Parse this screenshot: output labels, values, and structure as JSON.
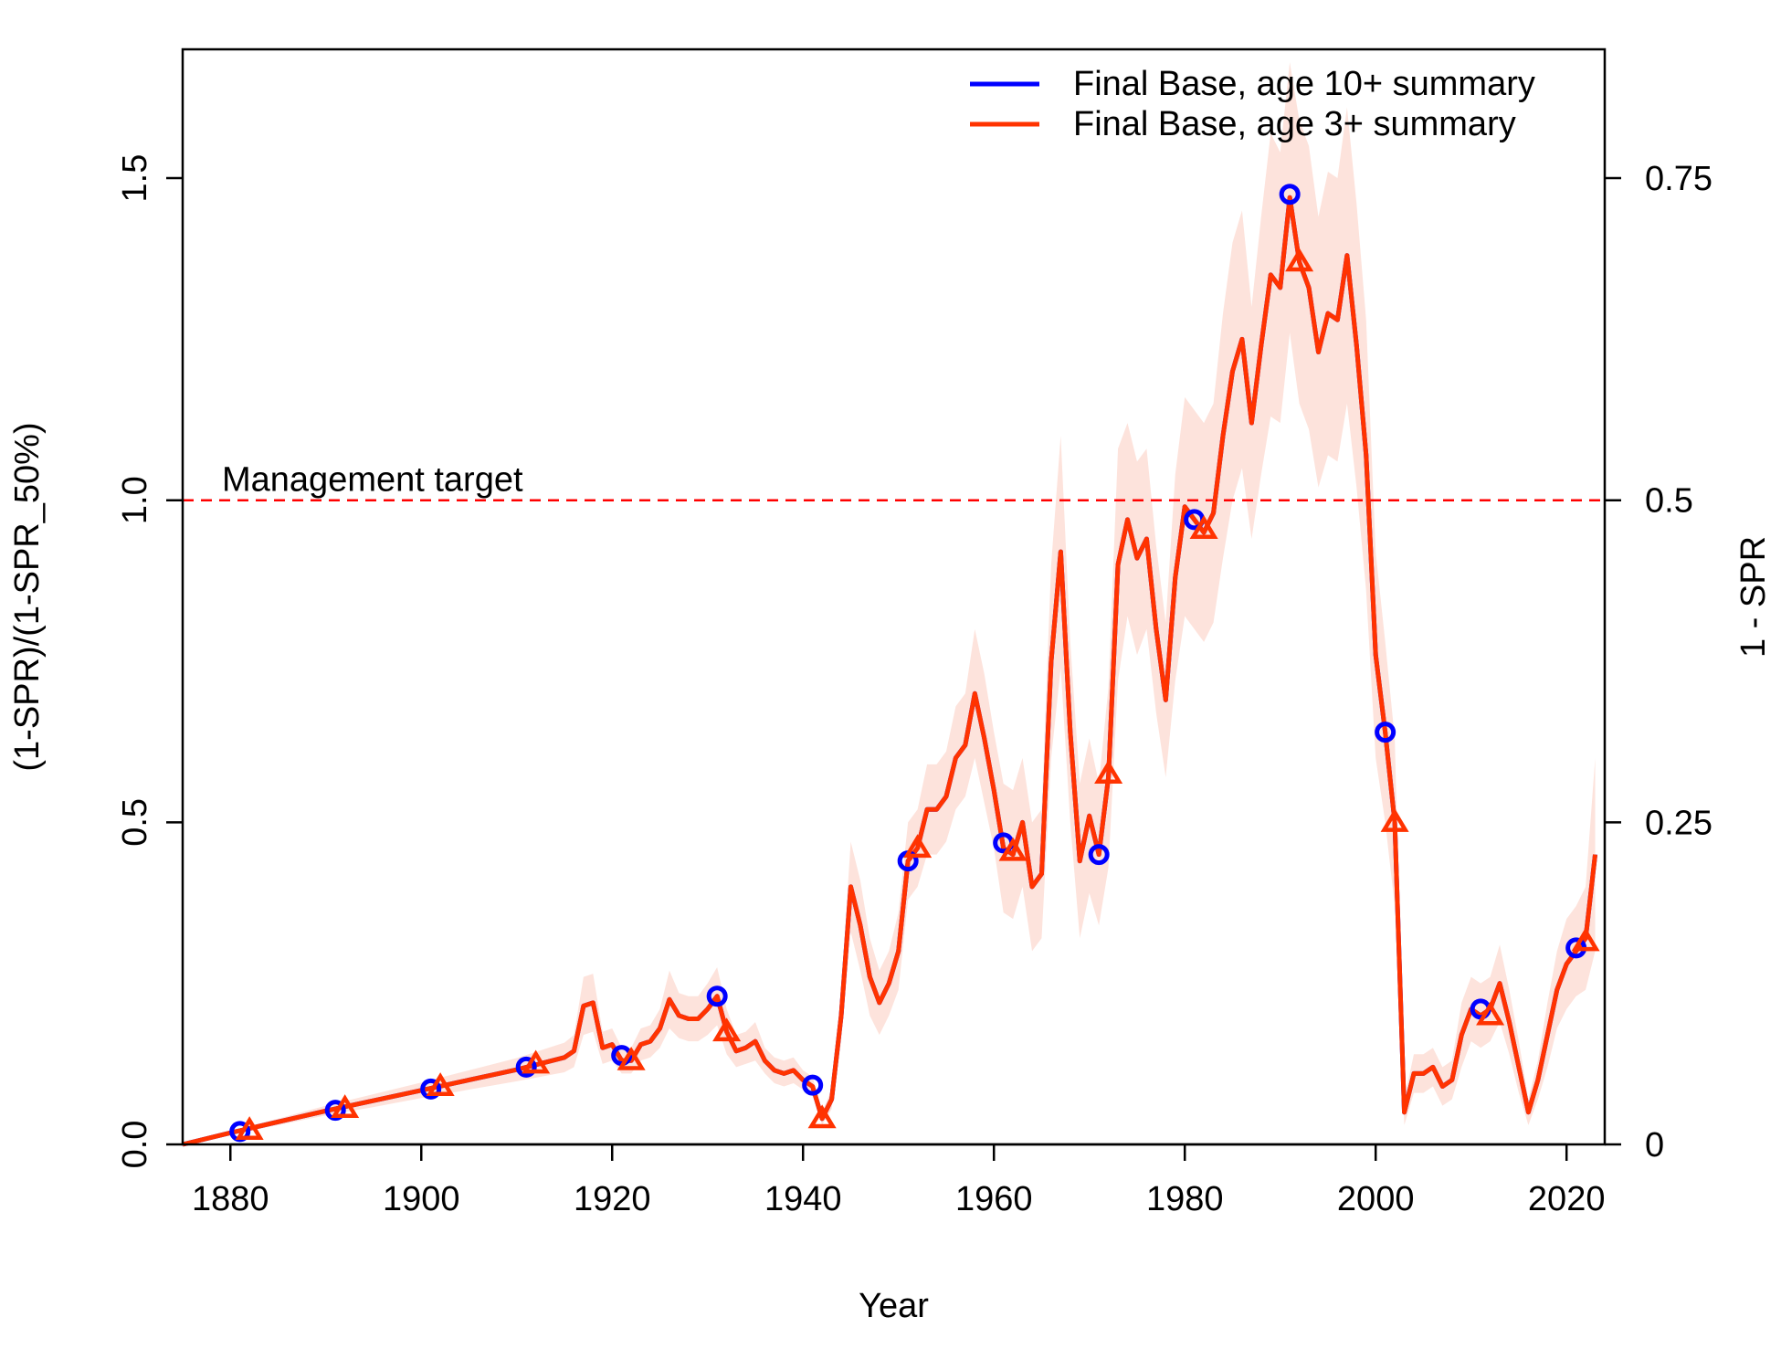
{
  "chart_data": {
    "type": "line",
    "title": "",
    "xlabel": "Year",
    "ylabel": "(1-SPR)/(1-SPR_50%)",
    "ylabel_right": "1 - SPR",
    "xlim": [
      1875,
      2024
    ],
    "ylim": [
      0,
      1.7
    ],
    "x_ticks": [
      1880,
      1900,
      1920,
      1940,
      1960,
      1980,
      2000,
      2020
    ],
    "y_ticks": [
      "0.0",
      "0.5",
      "1.0",
      "1.5"
    ],
    "y_tick_values": [
      0,
      0.5,
      1.0,
      1.5
    ],
    "y2_ticks": [
      "0",
      "0.25",
      "0.5",
      "0.75"
    ],
    "y2_tick_values": [
      0,
      0.5,
      1.0,
      1.5
    ],
    "grid": false,
    "legend_position": "top-right",
    "reference_line": {
      "y": 1.0,
      "label": "Management target",
      "color": "#ff0000",
      "style": "dashed"
    },
    "series": [
      {
        "name": "Final Base, age 10+ summary",
        "color": "#0000ff",
        "x": [
          1875,
          1880,
          1885,
          1890,
          1895,
          1900,
          1905,
          1910,
          1915,
          1916,
          1917,
          1918,
          1919,
          1920,
          1921,
          1922,
          1923,
          1924,
          1925,
          1926,
          1927,
          1928,
          1929,
          1930,
          1931,
          1932,
          1933,
          1934,
          1935,
          1936,
          1937,
          1938,
          1939,
          1940,
          1941,
          1942,
          1943,
          1944,
          1945,
          1946,
          1947,
          1948,
          1949,
          1950,
          1951,
          1952,
          1953,
          1954,
          1955,
          1956,
          1957,
          1958,
          1959,
          1960,
          1961,
          1962,
          1963,
          1964,
          1965,
          1966,
          1967,
          1968,
          1969,
          1970,
          1971,
          1972,
          1973,
          1974,
          1975,
          1976,
          1977,
          1978,
          1979,
          1980,
          1981,
          1982,
          1983,
          1984,
          1985,
          1986,
          1987,
          1988,
          1989,
          1990,
          1991,
          1992,
          1993,
          1994,
          1995,
          1996,
          1997,
          1998,
          1999,
          2000,
          2001,
          2002,
          2003,
          2004,
          2005,
          2006,
          2007,
          2008,
          2009,
          2010,
          2011,
          2012,
          2013,
          2014,
          2015,
          2016,
          2017,
          2018,
          2019,
          2020,
          2021,
          2022,
          2023
        ],
        "values": [
          0.0,
          0.018,
          0.035,
          0.052,
          0.068,
          0.084,
          0.1,
          0.116,
          0.135,
          0.145,
          0.215,
          0.22,
          0.15,
          0.155,
          0.13,
          0.13,
          0.155,
          0.16,
          0.18,
          0.225,
          0.2,
          0.195,
          0.195,
          0.21,
          0.23,
          0.175,
          0.145,
          0.15,
          0.16,
          0.13,
          0.115,
          0.11,
          0.115,
          0.1,
          0.09,
          0.04,
          0.07,
          0.2,
          0.4,
          0.34,
          0.26,
          0.22,
          0.25,
          0.3,
          0.44,
          0.46,
          0.52,
          0.52,
          0.54,
          0.6,
          0.62,
          0.7,
          0.63,
          0.55,
          0.46,
          0.45,
          0.5,
          0.4,
          0.42,
          0.75,
          0.92,
          0.64,
          0.44,
          0.51,
          0.45,
          0.57,
          0.9,
          0.97,
          0.91,
          0.94,
          0.8,
          0.69,
          0.88,
          0.99,
          0.97,
          0.95,
          0.98,
          1.1,
          1.2,
          1.25,
          1.12,
          1.24,
          1.35,
          1.33,
          1.47,
          1.37,
          1.33,
          1.23,
          1.29,
          1.28,
          1.38,
          1.24,
          1.07,
          0.76,
          0.64,
          0.5,
          0.05,
          0.11,
          0.11,
          0.12,
          0.09,
          0.1,
          0.17,
          0.21,
          0.2,
          0.21,
          0.25,
          0.19,
          0.12,
          0.05,
          0.1,
          0.17,
          0.24,
          0.28,
          0.3,
          0.32,
          0.45
        ]
      },
      {
        "name": "Final Base, age 3+ summary",
        "color": "#ff3300",
        "x": [
          1875,
          1880,
          1885,
          1890,
          1895,
          1900,
          1905,
          1910,
          1915,
          1916,
          1917,
          1918,
          1919,
          1920,
          1921,
          1922,
          1923,
          1924,
          1925,
          1926,
          1927,
          1928,
          1929,
          1930,
          1931,
          1932,
          1933,
          1934,
          1935,
          1936,
          1937,
          1938,
          1939,
          1940,
          1941,
          1942,
          1943,
          1944,
          1945,
          1946,
          1947,
          1948,
          1949,
          1950,
          1951,
          1952,
          1953,
          1954,
          1955,
          1956,
          1957,
          1958,
          1959,
          1960,
          1961,
          1962,
          1963,
          1964,
          1965,
          1966,
          1967,
          1968,
          1969,
          1970,
          1971,
          1972,
          1973,
          1974,
          1975,
          1976,
          1977,
          1978,
          1979,
          1980,
          1981,
          1982,
          1983,
          1984,
          1985,
          1986,
          1987,
          1988,
          1989,
          1990,
          1991,
          1992,
          1993,
          1994,
          1995,
          1996,
          1997,
          1998,
          1999,
          2000,
          2001,
          2002,
          2003,
          2004,
          2005,
          2006,
          2007,
          2008,
          2009,
          2010,
          2011,
          2012,
          2013,
          2014,
          2015,
          2016,
          2017,
          2018,
          2019,
          2020,
          2021,
          2022,
          2023
        ],
        "values": [
          0.0,
          0.018,
          0.035,
          0.052,
          0.068,
          0.084,
          0.1,
          0.116,
          0.135,
          0.145,
          0.215,
          0.22,
          0.15,
          0.155,
          0.13,
          0.13,
          0.155,
          0.16,
          0.18,
          0.225,
          0.2,
          0.195,
          0.195,
          0.21,
          0.23,
          0.175,
          0.145,
          0.15,
          0.16,
          0.13,
          0.115,
          0.11,
          0.115,
          0.1,
          0.09,
          0.04,
          0.07,
          0.2,
          0.4,
          0.34,
          0.26,
          0.22,
          0.25,
          0.3,
          0.44,
          0.46,
          0.52,
          0.52,
          0.54,
          0.6,
          0.62,
          0.7,
          0.63,
          0.55,
          0.46,
          0.45,
          0.5,
          0.4,
          0.42,
          0.75,
          0.92,
          0.64,
          0.44,
          0.51,
          0.45,
          0.57,
          0.9,
          0.97,
          0.91,
          0.94,
          0.8,
          0.69,
          0.88,
          0.99,
          0.97,
          0.95,
          0.98,
          1.1,
          1.2,
          1.25,
          1.12,
          1.24,
          1.35,
          1.33,
          1.47,
          1.37,
          1.33,
          1.23,
          1.29,
          1.28,
          1.38,
          1.24,
          1.07,
          0.76,
          0.64,
          0.5,
          0.05,
          0.11,
          0.11,
          0.12,
          0.09,
          0.1,
          0.17,
          0.21,
          0.2,
          0.21,
          0.25,
          0.19,
          0.12,
          0.05,
          0.1,
          0.17,
          0.24,
          0.28,
          0.3,
          0.32,
          0.45
        ],
        "band_lower": [
          0.0,
          0.015,
          0.03,
          0.045,
          0.058,
          0.072,
          0.085,
          0.098,
          0.112,
          0.12,
          0.17,
          0.175,
          0.125,
          0.13,
          0.11,
          0.11,
          0.13,
          0.135,
          0.15,
          0.18,
          0.165,
          0.16,
          0.16,
          0.17,
          0.185,
          0.14,
          0.12,
          0.125,
          0.13,
          0.11,
          0.095,
          0.09,
          0.095,
          0.085,
          0.075,
          0.03,
          0.055,
          0.16,
          0.33,
          0.27,
          0.2,
          0.17,
          0.2,
          0.24,
          0.38,
          0.4,
          0.45,
          0.45,
          0.47,
          0.52,
          0.54,
          0.6,
          0.53,
          0.46,
          0.36,
          0.35,
          0.4,
          0.3,
          0.32,
          0.6,
          0.74,
          0.5,
          0.32,
          0.39,
          0.34,
          0.43,
          0.72,
          0.82,
          0.76,
          0.8,
          0.67,
          0.57,
          0.72,
          0.82,
          0.8,
          0.78,
          0.81,
          0.91,
          1.0,
          1.05,
          0.94,
          1.04,
          1.13,
          1.12,
          1.26,
          1.15,
          1.11,
          1.02,
          1.07,
          1.06,
          1.15,
          1.02,
          0.86,
          0.6,
          0.5,
          0.37,
          0.03,
          0.08,
          0.08,
          0.09,
          0.06,
          0.07,
          0.12,
          0.16,
          0.15,
          0.16,
          0.19,
          0.14,
          0.08,
          0.03,
          0.07,
          0.12,
          0.18,
          0.21,
          0.23,
          0.24,
          0.3
        ],
        "band_upper": [
          0.0,
          0.021,
          0.04,
          0.06,
          0.078,
          0.096,
          0.115,
          0.134,
          0.158,
          0.17,
          0.26,
          0.265,
          0.175,
          0.18,
          0.15,
          0.15,
          0.18,
          0.185,
          0.21,
          0.27,
          0.235,
          0.23,
          0.23,
          0.25,
          0.275,
          0.21,
          0.17,
          0.175,
          0.19,
          0.15,
          0.135,
          0.13,
          0.135,
          0.115,
          0.105,
          0.05,
          0.085,
          0.24,
          0.47,
          0.41,
          0.32,
          0.27,
          0.3,
          0.36,
          0.5,
          0.52,
          0.59,
          0.59,
          0.61,
          0.68,
          0.7,
          0.8,
          0.73,
          0.64,
          0.56,
          0.55,
          0.6,
          0.5,
          0.52,
          0.9,
          1.1,
          0.78,
          0.56,
          0.63,
          0.56,
          0.71,
          1.08,
          1.12,
          1.06,
          1.08,
          0.93,
          0.81,
          1.04,
          1.16,
          1.14,
          1.12,
          1.15,
          1.29,
          1.4,
          1.45,
          1.3,
          1.44,
          1.57,
          1.54,
          1.68,
          1.59,
          1.55,
          1.44,
          1.51,
          1.5,
          1.61,
          1.46,
          1.28,
          0.92,
          0.78,
          0.63,
          0.07,
          0.14,
          0.14,
          0.15,
          0.12,
          0.13,
          0.22,
          0.26,
          0.25,
          0.26,
          0.31,
          0.24,
          0.16,
          0.07,
          0.13,
          0.22,
          0.3,
          0.35,
          0.37,
          0.4,
          0.6
        ]
      }
    ],
    "markers": [
      {
        "series": "Final Base, age 10+ summary",
        "shape": "circle",
        "x": [
          1881,
          1891,
          1901,
          1911,
          1921,
          1931,
          1941,
          1951,
          1961,
          1971,
          1981,
          1991,
          2001,
          2011,
          2021
        ],
        "values": [
          0.02,
          0.053,
          0.086,
          0.12,
          0.138,
          0.23,
          0.092,
          0.44,
          0.468,
          0.45,
          0.97,
          1.475,
          0.64,
          0.21,
          0.305
        ]
      },
      {
        "series": "Final Base, age 3+ summary",
        "shape": "triangle",
        "x": [
          1882,
          1892,
          1902,
          1912,
          1922,
          1932,
          1942,
          1952,
          1962,
          1972,
          1982,
          1992,
          2002,
          2012,
          2022
        ],
        "values": [
          0.022,
          0.056,
          0.09,
          0.125,
          0.13,
          0.175,
          0.04,
          0.46,
          0.455,
          0.575,
          0.955,
          1.37,
          0.5,
          0.2,
          0.315
        ]
      }
    ]
  }
}
